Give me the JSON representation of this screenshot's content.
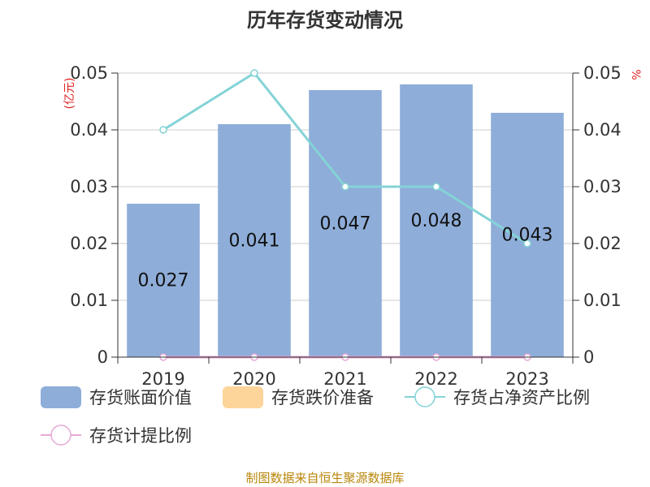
{
  "title": "历年存货变动情况",
  "source": "制图数据来自恒生聚源数据库",
  "colors": {
    "bar": "#8eadd9",
    "reserve": "#fdd59a",
    "ratio_line": "#84d3d6",
    "provision_line": "#e6a9d6",
    "axis": "#333333",
    "grid": "#cccccc",
    "unit": "#e02020",
    "source": "#b8860b"
  },
  "chart_data": {
    "type": "bar",
    "title": "历年存货变动情况",
    "categories": [
      "2019",
      "2020",
      "2021",
      "2022",
      "2023"
    ],
    "left_axis": {
      "unit": "(亿元)",
      "ylim": [
        0,
        0.05
      ],
      "ticks": [
        "0",
        "0.01",
        "0.02",
        "0.03",
        "0.04",
        "0.05"
      ]
    },
    "right_axis": {
      "unit": "%",
      "ylim": [
        0,
        0.05
      ],
      "ticks": [
        "0",
        "0.01",
        "0.02",
        "0.03",
        "0.04",
        "0.05"
      ]
    },
    "series": [
      {
        "name": "存货账面价值",
        "type": "bar",
        "axis": "left",
        "values": [
          0.027,
          0.041,
          0.047,
          0.048,
          0.043
        ],
        "labels": [
          "0.027",
          "0.041",
          "0.047",
          "0.048",
          "0.043"
        ]
      },
      {
        "name": "存货跌价准备",
        "type": "bar",
        "axis": "left",
        "values": [
          0,
          0,
          0,
          0,
          0
        ]
      },
      {
        "name": "存货占净资产比例",
        "type": "line",
        "axis": "right",
        "values": [
          0.04,
          0.05,
          0.03,
          0.03,
          0.02
        ]
      },
      {
        "name": "存货计提比例",
        "type": "line",
        "axis": "right",
        "values": [
          0,
          0,
          0,
          0,
          0
        ]
      }
    ],
    "grid": true,
    "legend_position": "bottom"
  }
}
